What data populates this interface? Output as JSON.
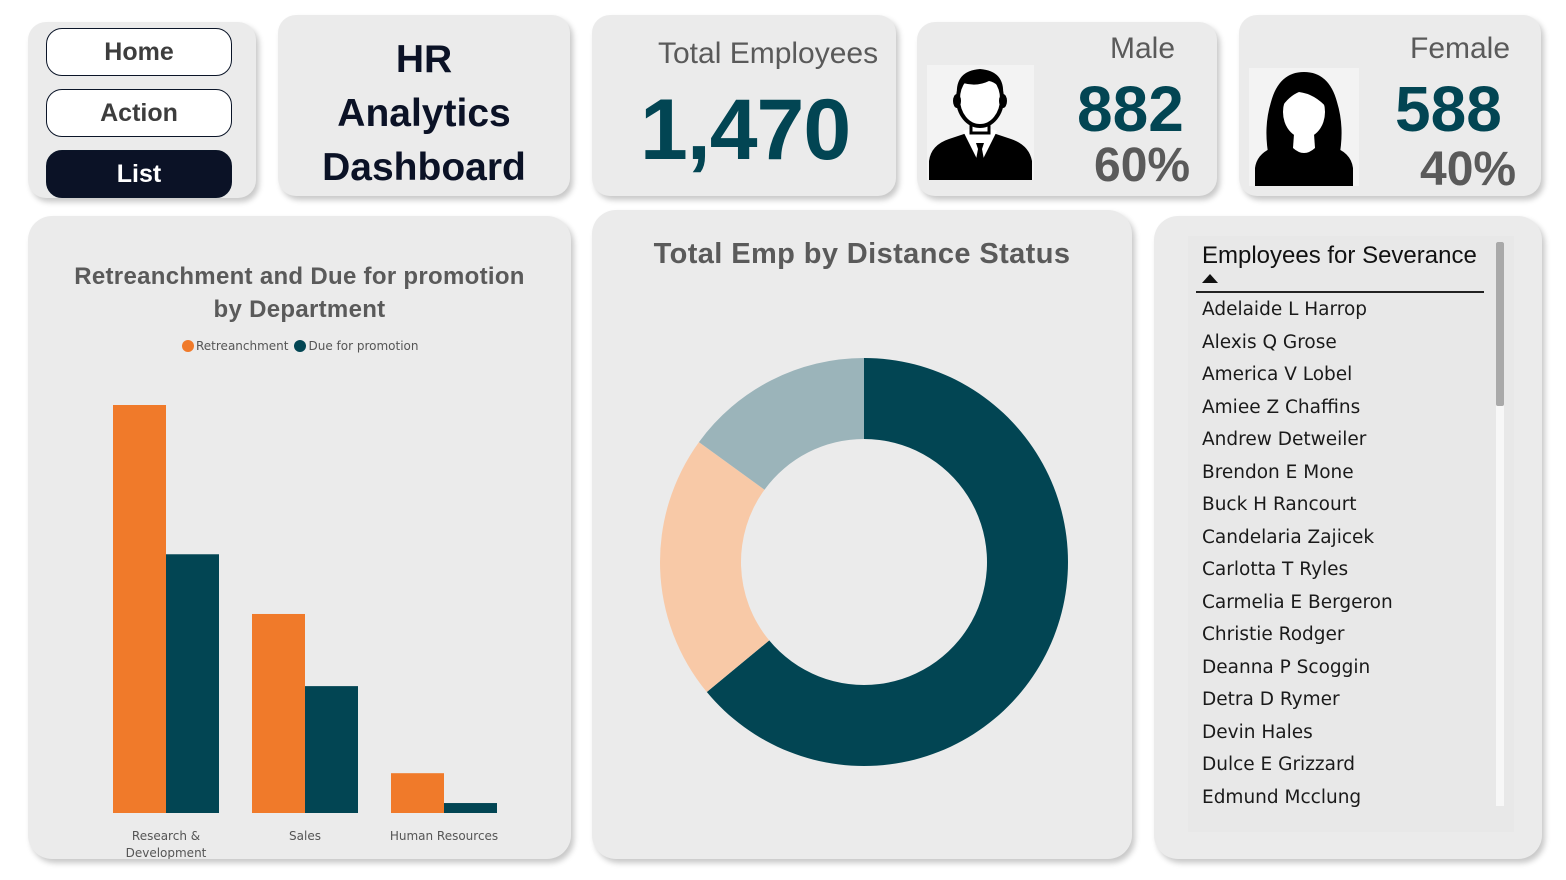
{
  "nav": {
    "items": [
      {
        "label": "Home"
      },
      {
        "label": "Action"
      },
      {
        "label": "List"
      }
    ]
  },
  "title": {
    "line1": "HR",
    "line2": "Analytics",
    "line3": "Dashboard"
  },
  "total": {
    "label": "Total Employees",
    "value": "1,470"
  },
  "male": {
    "label": "Male",
    "count": "882",
    "pct": "60%",
    "icon": "male-avatar-icon"
  },
  "female": {
    "label": "Female",
    "count": "588",
    "pct": "40%",
    "icon": "female-avatar-icon"
  },
  "colors": {
    "teal": "#024553",
    "orange": "#f07a2a",
    "peach": "#f8c9a7",
    "slate": "#9bb4ba",
    "navy": "#0b1226"
  },
  "chart_data": [
    {
      "type": "bar",
      "title_line1": "Retreanchment and Due for promotion",
      "title_line2": "by Department",
      "categories": [
        "Research &\nDevelopment",
        "Sales",
        "Human Resources"
      ],
      "series": [
        {
          "name": "Retreanchment",
          "color": "#f07a2a",
          "values": [
            164,
            80,
            16
          ]
        },
        {
          "name": "Due for promotion",
          "color": "#024553",
          "values": [
            104,
            51,
            4
          ]
        }
      ],
      "ylim": [
        0,
        164
      ],
      "legend": "top-center",
      "grid": false
    },
    {
      "type": "pie",
      "variant": "donut",
      "title": "Total Emp by Distance Status",
      "series": [
        {
          "value": 64,
          "color": "#024553"
        },
        {
          "value": 21,
          "color": "#f8c9a7"
        },
        {
          "value": 15,
          "color": "#9bb4ba"
        }
      ],
      "legend": "none"
    }
  ],
  "severance": {
    "header": "Employees for Severance",
    "sort": "ascending",
    "items": [
      "Adelaide L Harrop",
      "Alexis Q Grose",
      "America V Lobel",
      "Amiee Z Chaffins",
      "Andrew Detweiler",
      "Brendon E Mone",
      "Buck H Rancourt",
      "Candelaria Zajicek",
      "Carlotta T Ryles",
      "Carmelia E Bergeron",
      "Christie Rodger",
      "Deanna P Scoggin",
      "Detra D Rymer",
      "Devin Hales",
      "Dulce E Grizzard",
      "Edmund Mcclung"
    ]
  }
}
